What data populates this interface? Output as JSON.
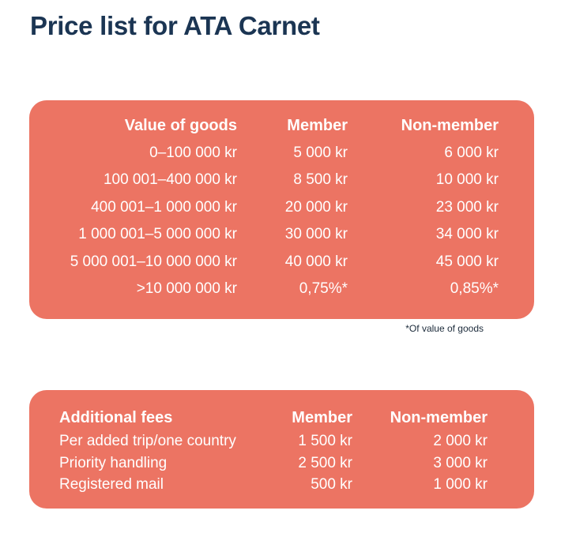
{
  "title": "Price list for ATA Carnet",
  "price_table": {
    "headers": {
      "value": "Value of goods",
      "member": "Member",
      "non_member": "Non-member"
    },
    "rows": [
      {
        "value": "0–100 000 kr",
        "member": "5 000 kr",
        "non_member": "6 000 kr"
      },
      {
        "value": "100 001–400 000 kr",
        "member": "8 500 kr",
        "non_member": "10 000 kr"
      },
      {
        "value": "400 001–1 000 000 kr",
        "member": "20 000 kr",
        "non_member": "23 000 kr"
      },
      {
        "value": "1 000 001–5 000 000 kr",
        "member": "30 000 kr",
        "non_member": "34 000 kr"
      },
      {
        "value": "5 000 001–10 000 000 kr",
        "member": "40 000 kr",
        "non_member": "45 000 kr"
      },
      {
        "value": ">10 000 000 kr",
        "member": "0,75%*",
        "non_member": "0,85%*"
      }
    ]
  },
  "footnote": "*Of value of goods",
  "fees_table": {
    "headers": {
      "name": "Additional fees",
      "member": "Member",
      "non_member": "Non-member"
    },
    "rows": [
      {
        "name": "Per added trip/one country",
        "member": "1 500 kr",
        "non_member": "2 000 kr"
      },
      {
        "name": "Priority handling",
        "member": "2 500 kr",
        "non_member": "3 000 kr"
      },
      {
        "name": "Registered mail",
        "member": "500 kr",
        "non_member": "1 000 kr"
      }
    ]
  },
  "colors": {
    "title": "#1b3553",
    "card": "#ec7463",
    "card_text": "#ffffff"
  }
}
